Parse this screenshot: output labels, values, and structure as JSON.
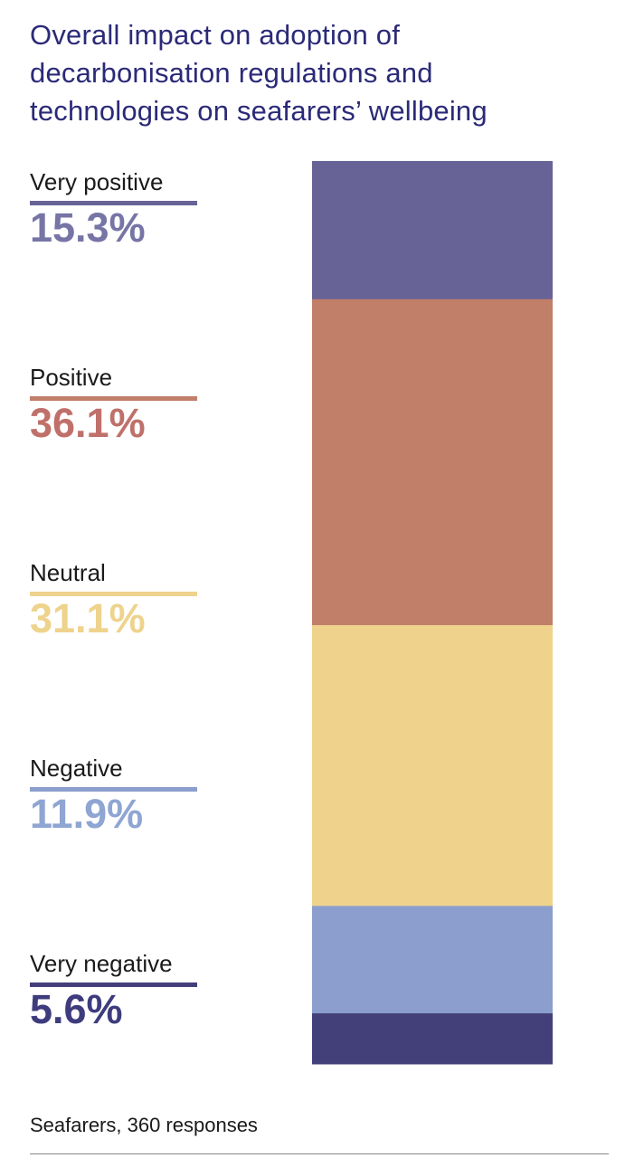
{
  "title_lines": [
    "Overall impact on adoption of",
    "decarbonisation regulations and",
    "technologies on seafarers’ wellbeing"
  ],
  "footnote": "Seafarers, 360 responses",
  "chart_data": {
    "type": "bar",
    "stacked": true,
    "orientation": "vertical-single-stack",
    "title": "Overall impact on adoption of decarbonisation regulations and technologies on seafarers’ wellbeing",
    "categories": [
      "Very positive",
      "Positive",
      "Neutral",
      "Negative",
      "Very negative"
    ],
    "values": [
      15.3,
      36.1,
      31.1,
      11.9,
      5.6
    ],
    "value_labels": [
      "15.3%",
      "36.1%",
      "31.1%",
      "11.9%",
      "5.6%"
    ],
    "colors": [
      "#676397",
      "#c17e69",
      "#efd38d",
      "#8b9ecd",
      "#434079"
    ],
    "value_colors": [
      "#7774a6",
      "#c0706a",
      "#eed38c",
      "#8fa5d2",
      "#3e3c7d"
    ],
    "unit": "%",
    "ylim": [
      0,
      100
    ],
    "grid": false,
    "legend_placement": "left"
  }
}
